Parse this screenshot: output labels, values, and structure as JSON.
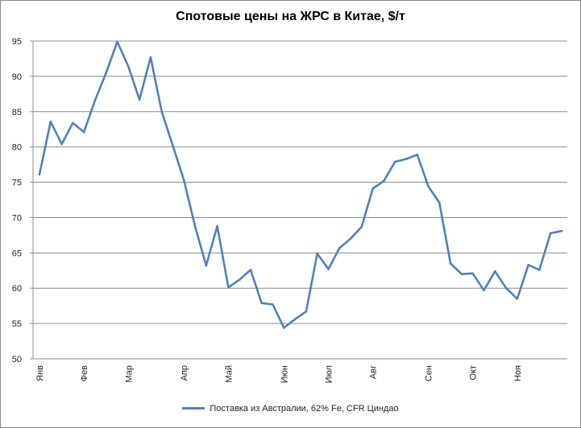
{
  "chart_data": {
    "type": "line",
    "title": "Спотовые цены на ЖРС в Китае, $/т",
    "xlabel": "",
    "ylabel": "",
    "ylim": [
      50,
      95
    ],
    "yticks": [
      50,
      55,
      60,
      65,
      70,
      75,
      80,
      85,
      90,
      95
    ],
    "grid": true,
    "legend_position": "bottom",
    "month_ticks": [
      {
        "label": "Янв",
        "index": 0
      },
      {
        "label": "Фев",
        "index": 4
      },
      {
        "label": "Мар",
        "index": 8
      },
      {
        "label": "Апр",
        "index": 13
      },
      {
        "label": "Май",
        "index": 17
      },
      {
        "label": "Июн",
        "index": 22
      },
      {
        "label": "Июл",
        "index": 26
      },
      {
        "label": "Авг",
        "index": 30
      },
      {
        "label": "Сен",
        "index": 35
      },
      {
        "label": "Окт",
        "index": 39
      },
      {
        "label": "Ноя",
        "index": 43
      }
    ],
    "series": [
      {
        "name": "Поставка из Австралии, 62% Fe, CFR Циндао",
        "color": "#4f81bd",
        "values": [
          76.1,
          83.6,
          80.4,
          83.4,
          82.1,
          86.6,
          90.5,
          94.9,
          91.4,
          86.7,
          92.7,
          85.0,
          80.2,
          75.3,
          68.8,
          63.2,
          68.8,
          60.1,
          61.2,
          62.6,
          57.9,
          57.7,
          54.4,
          55.6,
          56.7,
          64.9,
          62.7,
          65.7,
          67.0,
          68.7,
          74.1,
          75.2,
          77.9,
          78.3,
          78.9,
          74.4,
          72.1,
          63.5,
          62.0,
          62.1,
          59.7,
          62.4,
          60.0,
          58.5,
          63.3,
          62.6,
          67.8,
          68.1
        ]
      }
    ]
  }
}
